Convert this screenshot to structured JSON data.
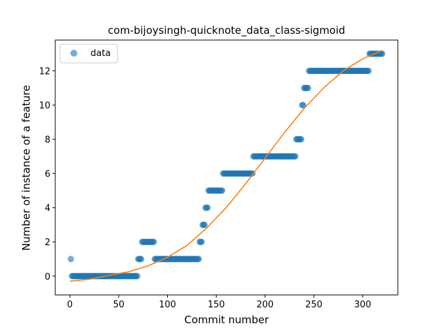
{
  "chart_data": {
    "type": "scatter",
    "title": "com-bijoysingh-quicknote_data_class-sigmoid",
    "xlabel": "Commit number",
    "ylabel": "Number of instance of a feature",
    "xlim": [
      -15,
      336
    ],
    "ylim": [
      -1.1,
      13.8
    ],
    "xticks": [
      0,
      50,
      100,
      150,
      200,
      250,
      300
    ],
    "yticks": [
      0,
      2,
      4,
      6,
      8,
      10,
      12
    ],
    "grid": false,
    "legend": {
      "position": "top-left",
      "entries": [
        "data"
      ]
    },
    "colors": {
      "data": "#1f77b4",
      "fit": "#ff7f0e"
    },
    "series": [
      {
        "name": "data",
        "kind": "scatter",
        "segments": [
          {
            "x_start": 1,
            "x_end": 1,
            "y": 1
          },
          {
            "x_start": 2,
            "x_end": 69,
            "y": 0
          },
          {
            "x_start": 70,
            "x_end": 73,
            "y": 1
          },
          {
            "x_start": 74,
            "x_end": 86,
            "y": 2
          },
          {
            "x_start": 87,
            "x_end": 132,
            "y": 1
          },
          {
            "x_start": 133,
            "x_end": 135,
            "y": 2
          },
          {
            "x_start": 136,
            "x_end": 138,
            "y": 3
          },
          {
            "x_start": 139,
            "x_end": 141,
            "y": 4
          },
          {
            "x_start": 142,
            "x_end": 156,
            "y": 5
          },
          {
            "x_start": 157,
            "x_end": 187,
            "y": 6
          },
          {
            "x_start": 188,
            "x_end": 231,
            "y": 7
          },
          {
            "x_start": 232,
            "x_end": 237,
            "y": 8
          },
          {
            "x_start": 238,
            "x_end": 239,
            "y": 10
          },
          {
            "x_start": 240,
            "x_end": 244,
            "y": 11
          },
          {
            "x_start": 245,
            "x_end": 306,
            "y": 12
          },
          {
            "x_start": 307,
            "x_end": 320,
            "y": 13
          }
        ]
      },
      {
        "name": "",
        "kind": "line",
        "x": [
          0,
          20,
          40,
          60,
          80,
          100,
          120,
          140,
          160,
          180,
          200,
          220,
          240,
          260,
          280,
          300,
          320
        ],
        "y": [
          -0.3,
          -0.18,
          0.05,
          0.25,
          0.6,
          1.1,
          1.8,
          2.8,
          4.0,
          5.4,
          6.9,
          8.4,
          9.8,
          11.0,
          12.0,
          12.7,
          13.2
        ]
      }
    ]
  }
}
